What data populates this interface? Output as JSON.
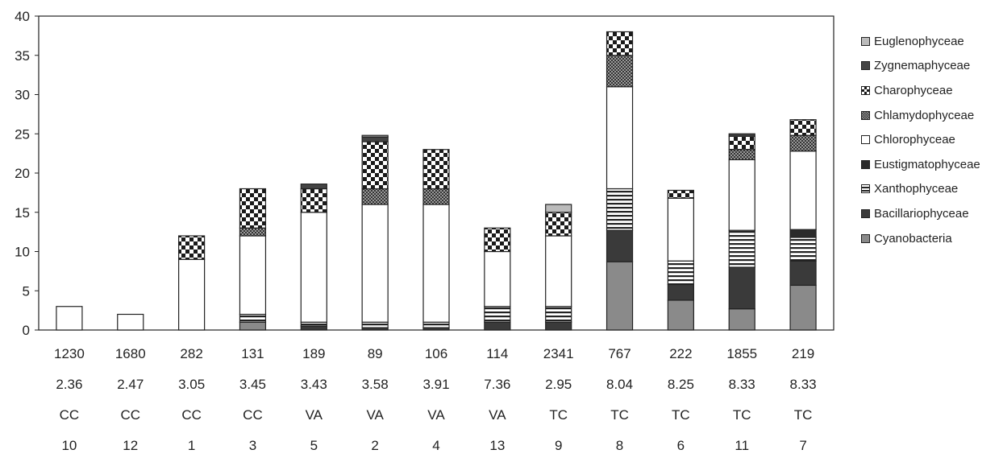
{
  "chart_data": {
    "type": "bar",
    "stacked": true,
    "title": "",
    "xlabel": "",
    "ylabel": "",
    "ylim": [
      0,
      40
    ],
    "yticks": [
      0,
      5,
      10,
      15,
      20,
      25,
      30,
      35,
      40
    ],
    "grid": false,
    "legend_position": "right",
    "category_rows": [
      [
        "1230",
        "1680",
        "282",
        "131",
        "189",
        "89",
        "106",
        "114",
        "2341",
        "767",
        "222",
        "1855",
        "219"
      ],
      [
        "2.36",
        "2.47",
        "3.05",
        "3.45",
        "3.43",
        "3.58",
        "3.91",
        "7.36",
        "2.95",
        "8.04",
        "8.25",
        "8.33",
        "8.33"
      ],
      [
        "CC",
        "CC",
        "CC",
        "CC",
        "VA",
        "VA",
        "VA",
        "VA",
        "TC",
        "TC",
        "TC",
        "TC",
        "TC"
      ],
      [
        "10",
        "12",
        "1",
        "3",
        "5",
        "2",
        "4",
        "13",
        "9",
        "8",
        "6",
        "11",
        "7"
      ]
    ],
    "legend": [
      "Euglenophyceae",
      "Zygnemaphyceae",
      "Charophyceae",
      "Chlamydophyceae",
      "Chlorophyceae",
      "Eustigmatophyceae",
      "Xanthophyceae",
      "Bacillariophyceae",
      "Cyanobacteria"
    ],
    "series": [
      {
        "name": "Cyanobacteria",
        "color": "#8a8a8a",
        "pattern": "solid",
        "values": [
          0,
          0,
          0,
          1,
          0,
          0,
          0,
          0,
          0,
          8.7,
          3.8,
          2.7,
          5.7
        ]
      },
      {
        "name": "Bacillariophyceae",
        "color": "#3a3a3a",
        "pattern": "solid",
        "values": [
          0,
          0,
          0,
          0,
          0.5,
          0.3,
          0.3,
          1,
          1,
          4,
          2,
          5.3,
          3.1
        ]
      },
      {
        "name": "Xanthophyceae",
        "color": "#222222",
        "pattern": "hstripe",
        "values": [
          0,
          0,
          0,
          1,
          0.5,
          0.7,
          0.7,
          2,
          2,
          5.3,
          3,
          4.7,
          3
        ]
      },
      {
        "name": "Eustigmatophyceae",
        "color": "#2b2b2b",
        "pattern": "solid",
        "values": [
          0,
          0,
          0,
          0,
          0,
          0,
          0,
          0,
          0,
          0,
          0,
          0,
          1
        ]
      },
      {
        "name": "Chlorophyceae",
        "color": "#ffffff",
        "pattern": "solid",
        "values": [
          3,
          2,
          9,
          10,
          14,
          15,
          15,
          7,
          9,
          13,
          8,
          9,
          10
        ]
      },
      {
        "name": "Chlamydophyceae",
        "color": "#555555",
        "pattern": "dots",
        "values": [
          0,
          0,
          0,
          1,
          0,
          2,
          2,
          0,
          0,
          4,
          0,
          1.3,
          2
        ]
      },
      {
        "name": "Charophyceae",
        "color": "#1a1a1a",
        "pattern": "checker",
        "values": [
          0,
          0,
          3,
          5,
          3,
          6,
          5,
          3,
          3,
          3,
          1,
          1.7,
          2
        ]
      },
      {
        "name": "Zygnemaphyceae",
        "color": "#444444",
        "pattern": "solid",
        "values": [
          0,
          0,
          0,
          0,
          0.6,
          0.6,
          0,
          0,
          0,
          0,
          0,
          0.3,
          0
        ]
      },
      {
        "name": "Euglenophyceae",
        "color": "#bbbbbb",
        "pattern": "solid",
        "values": [
          0,
          0,
          0,
          0,
          0,
          0.2,
          0,
          0,
          1,
          0,
          0,
          0,
          0
        ]
      }
    ]
  }
}
